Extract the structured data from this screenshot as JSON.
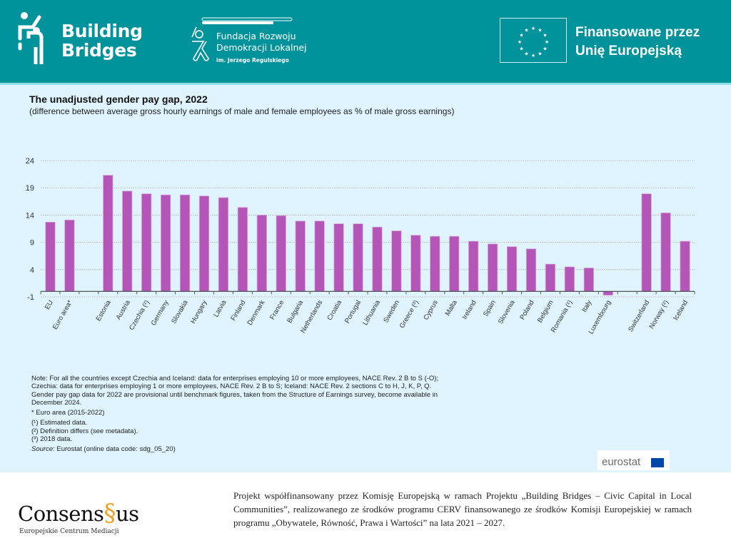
{
  "header": {
    "building_bridges": [
      "Building",
      "Bridges"
    ],
    "foundation": {
      "line1": "Fundacja Rozwoju",
      "line2": "Demokracji Lokalnej",
      "line3": "im. Jerzego Regulskiego"
    },
    "eu_funding": [
      "Finansowane przez",
      "Unię Europejską"
    ],
    "colors": {
      "band": "#00939b",
      "strip": "#8fe0e6"
    }
  },
  "chart_data": {
    "type": "bar",
    "title": "The unadjusted gender pay gap, 2022",
    "subtitle": "(difference between average gross hourly earnings of male and female employees as % of male gross earnings)",
    "xlabel": "",
    "ylabel": "",
    "ylim": [
      -1,
      24
    ],
    "yticks": [
      24,
      19,
      14,
      9,
      4,
      -1
    ],
    "grid": true,
    "bar_color": "#b455b8",
    "categories": [
      "EU",
      "Euro area*",
      "",
      "Estonia",
      "Austria",
      "Czechia (²)",
      "Germany",
      "Slovakia",
      "Hungary",
      "Latvia",
      "Finland",
      "Denmark",
      "France",
      "Bulgaria",
      "Netherlands",
      "Croatia",
      "Portugal",
      "Lithuania",
      "Sweden",
      "Greece (³)",
      "Cyprus",
      "Malta",
      "Ireland",
      "Spain",
      "Slovenia",
      "Poland",
      "Belgium",
      "Romania (¹)",
      "Italy",
      "Luxembourg",
      "",
      "Switzerland",
      "Norway (²)",
      "Iceland"
    ],
    "values": [
      12.7,
      13.1,
      null,
      21.3,
      18.4,
      17.9,
      17.7,
      17.7,
      17.5,
      17.2,
      15.4,
      14.0,
      13.9,
      12.9,
      12.9,
      12.4,
      12.4,
      11.8,
      11.1,
      10.3,
      10.1,
      10.1,
      9.2,
      8.7,
      8.2,
      7.8,
      5.0,
      4.5,
      4.3,
      -0.7,
      null,
      17.9,
      14.4,
      9.2
    ]
  },
  "notes": {
    "lines": [
      "Note: For all the countries except Czechia and Iceland: data for enterprises employing 10 or more employees, NACE Rev. 2 B to S (-O);",
      "Czechia: data for enterprises employing 1 or more employees, NACE Rev. 2 B to S; Iceland: NACE Rev. 2 sections C to H, J, K, P, Q.",
      "Gender pay gap data for 2022 are provisional until benchmark figures, taken from the Structure of Earnings survey, become available in",
      "December 2024."
    ],
    "euro_area": "* Euro area (2015-2022)",
    "footnotes": [
      "(¹) Estimated data.",
      "(²) Definition differs (see metadata).",
      "(³) 2018 data."
    ],
    "source_label": "Source",
    "source_text": ": Eurostat (online data code: sdg_05_20)"
  },
  "eurostat_logo": "eurostat",
  "footer": {
    "consensus_name": "Consens",
    "consensus_suffix": "us",
    "consensus_subtitle": "Europejskie Centrum Mediacji",
    "funding_text": "Projekt współfinansowany przez Komisję Europejską w ramach Projektu „Building Bridges – Civic Capital in Local Communities”, realizowanego ze środków programu CERV finansowanego ze środków Komisji Europejskiej w ramach programu „Obywatele, Równość, Prawa i Wartości” na lata 2021 – 2027.",
    "accent_color": "#f4a11f"
  }
}
